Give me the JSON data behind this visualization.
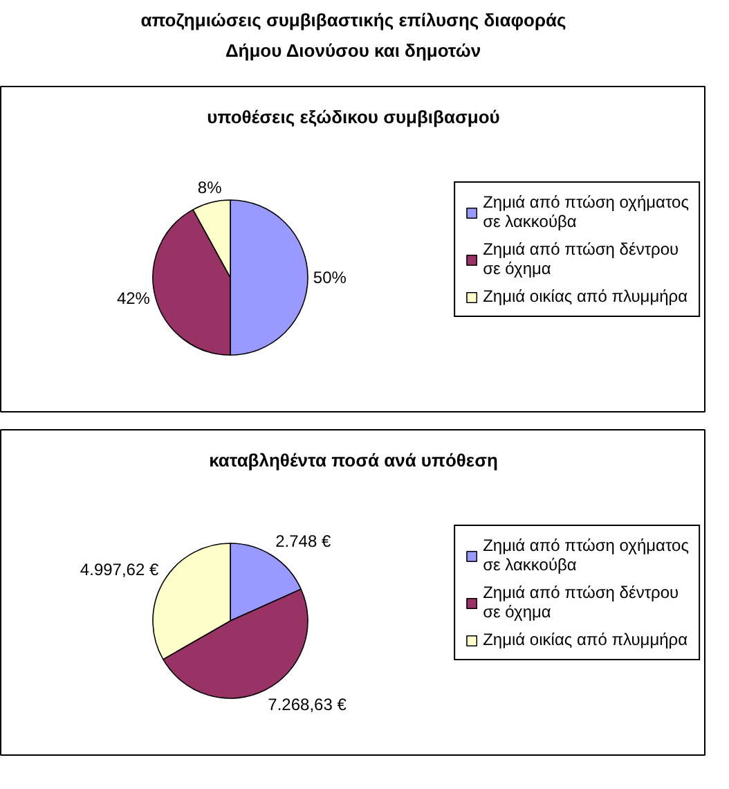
{
  "chart_data": [
    {
      "type": "other",
      "title": "αποζημιώσεις συμβιβαστικής επίλυσης διαφοράς",
      "subtitle": "Δήμου Διονύσου και δημοτών"
    },
    {
      "type": "pie",
      "title": "υποθέσεις εξώδικου συμβιβασμού",
      "categories": [
        "Ζημιά από πτώση οχήματος σε λακκούβα",
        "Ζημιά από πτώση δέντρου σε όχημα",
        "Ζημιά οικίας από πλυμμήρα"
      ],
      "values": [
        50,
        42,
        8
      ],
      "colors": [
        "#9999ff",
        "#993366",
        "#ffffcc"
      ],
      "value_labels": [
        "50%",
        "42%",
        "8%"
      ],
      "legend": "right"
    },
    {
      "type": "pie",
      "title": "καταβληθέντα ποσά ανά υπόθεση",
      "categories": [
        "Ζημιά από πτώση οχήματος σε λακκούβα",
        "Ζημιά από πτώση δέντρου σε όχημα",
        "Ζημιά οικίας από πλυμμήρα"
      ],
      "values": [
        2748,
        7268.63,
        4997.62
      ],
      "colors": [
        "#9999ff",
        "#993366",
        "#ffffcc"
      ],
      "value_labels": [
        "2.748 €",
        "7.268,63 €",
        "4.997,62 €"
      ],
      "legend": "right"
    }
  ]
}
